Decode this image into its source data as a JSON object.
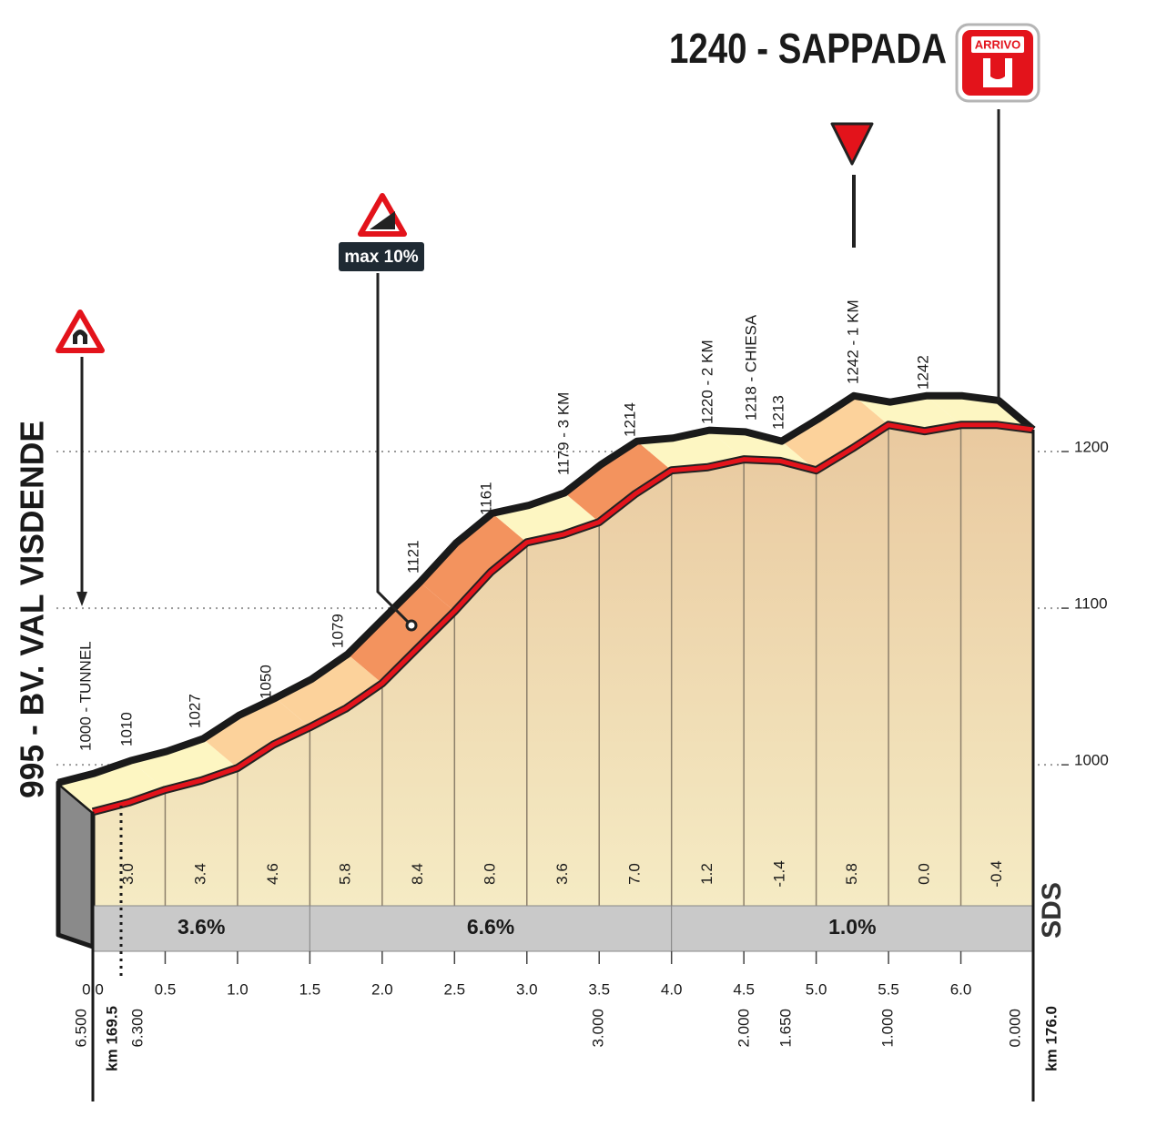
{
  "chart_data": {
    "type": "profile",
    "title": "1240 - SAPPADA",
    "finish_badge": "ARRIVO",
    "start_label": "995 - BV. VAL VISDENDE",
    "climb_sign": "max 10%",
    "logo": "SDS",
    "line_color": "#e3131b",
    "x": [
      0,
      0.25,
      0.5,
      0.75,
      1,
      1.25,
      1.5,
      1.75,
      2,
      2.25,
      2.5,
      2.75,
      3,
      3.25,
      3.5,
      3.75,
      4,
      4.25,
      4.5,
      4.75,
      5,
      5.25,
      5.5,
      5.75,
      6,
      6.25,
      6.5
    ],
    "values": [
      970,
      976,
      984,
      990,
      998,
      1013,
      1024,
      1036,
      1052,
      1075,
      1098,
      1123,
      1142,
      1147,
      1155,
      1173,
      1188,
      1190,
      1195,
      1194,
      1188,
      1202,
      1217,
      1213,
      1217,
      1217,
      1214
    ],
    "xlim": [
      0,
      6.5
    ],
    "xticks": [
      {
        "value": 0,
        "label": "0.0"
      },
      0.5,
      {
        "value": 1,
        "label": "1.0"
      },
      1.5,
      {
        "value": 2,
        "label": "2.0"
      },
      2.5,
      {
        "value": 3,
        "label": "3.0"
      },
      3.5,
      {
        "value": 4,
        "label": "4.0"
      },
      4.5,
      {
        "value": 5,
        "label": "5.0"
      },
      5.5,
      {
        "value": 6,
        "label": "6.0"
      }
    ],
    "ylim": [
      910,
      1250
    ],
    "yticks": [
      1000,
      1100,
      1200
    ],
    "grid": true,
    "gradients": {
      "values": [
        3,
        3.4,
        4.6,
        5.8,
        8.4,
        8,
        3.6,
        7,
        1.2,
        -1.4,
        5.8,
        0,
        -0.4
      ],
      "value_labels": [
        "3.0",
        "3.4",
        "4.6",
        "5.8",
        "8.4",
        "8.0",
        "3.6",
        "7.0",
        "1.2",
        "-1.4",
        "5.8",
        "0.0",
        "-0.4"
      ]
    },
    "averages": {
      "bins": [
        0,
        1.5,
        4,
        6.5
      ],
      "values": [
        3.6,
        6.6,
        1
      ],
      "value_labels": [
        "3.6%",
        "6.6%",
        "1.0%"
      ]
    },
    "annotations": [
      "1000 - TUNNEL",
      "1010",
      "1027",
      "1050",
      "1079",
      "1121",
      "1161",
      "1179 - 3 KM",
      "1214",
      "1220 - 2 KM",
      "1218 - CHIESA",
      "1213",
      "1242 - 1 KM",
      "1242"
    ],
    "remaining": [
      "6.500",
      "6.300",
      "3.000",
      "2.000",
      "1.650",
      "1.000",
      "0.000"
    ],
    "km_marks": [
      "km 169.5",
      "km 176.0"
    ]
  }
}
